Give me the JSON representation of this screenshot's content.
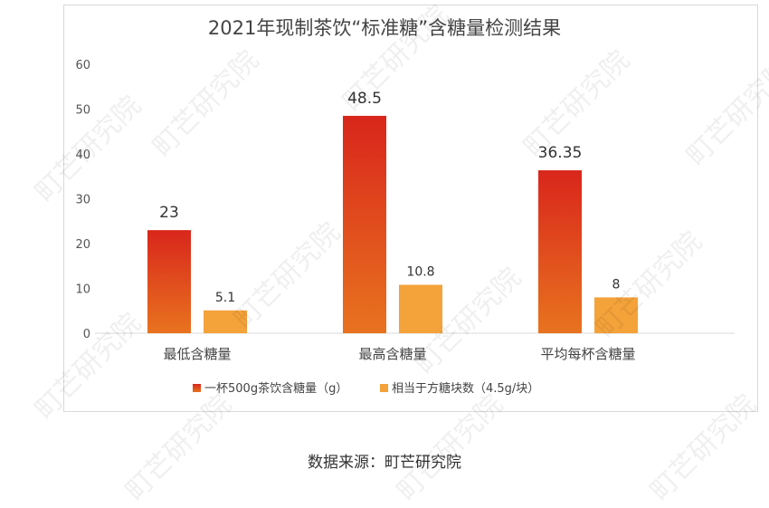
{
  "chart_data": {
    "type": "bar",
    "title": "2021年现制茶饮“标准糖”含糖量检测结果",
    "categories": [
      "最低含糖量",
      "最高含糖量",
      "平均每杯含糖量"
    ],
    "series": [
      {
        "name": "一杯500g茶饮含糖量（g）",
        "values": [
          23,
          48.5,
          36.35
        ],
        "labels": [
          "23",
          "48.5",
          "36.35"
        ],
        "color": "#d9261c",
        "color_bottom": "#e8731f"
      },
      {
        "name": "相当于方糖块数（4.5g/块）",
        "values": [
          5.1,
          10.8,
          8
        ],
        "labels": [
          "5.1",
          "10.8",
          "8"
        ],
        "color": "#f4a23a"
      }
    ],
    "yticks": [
      "0",
      "10",
      "20",
      "30",
      "40",
      "50",
      "60"
    ],
    "ylim": [
      0,
      60
    ],
    "grid": false,
    "legend": "bottom"
  },
  "source": "数据来源：町芒研究院",
  "watermark": "町芒研究院"
}
